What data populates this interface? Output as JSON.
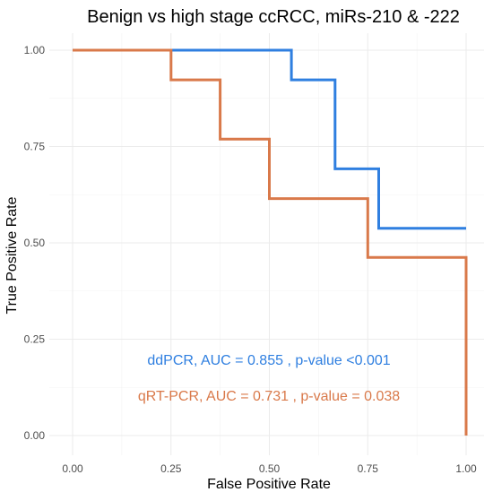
{
  "chart_data": {
    "type": "line",
    "title": "Benign vs high stage ccRCC, miRs-210 & -222",
    "xlabel": "False Positive Rate",
    "ylabel": "True Positive Rate",
    "xlim": [
      0,
      1
    ],
    "ylim": [
      0,
      1
    ],
    "x_ticks": [
      "0.00",
      "0.25",
      "0.50",
      "0.75",
      "1.00"
    ],
    "y_ticks": [
      "0.00",
      "0.25",
      "0.50",
      "0.75",
      "1.00"
    ],
    "grid": true,
    "series": [
      {
        "color": "#2f7fe0",
        "step": true,
        "x": [
          0.0,
          0.25,
          0.556,
          0.556,
          0.667,
          0.667,
          0.778,
          0.778,
          1.0
        ],
        "y": [
          1.0,
          1.0,
          1.0,
          0.923,
          0.923,
          0.692,
          0.692,
          0.538,
          0.538
        ]
      },
      {
        "color": "#d9794a",
        "step": true,
        "x": [
          0.0,
          0.25,
          0.25,
          0.375,
          0.375,
          0.5,
          0.5,
          0.75,
          0.75,
          1.0,
          1.0
        ],
        "y": [
          1.0,
          1.0,
          0.923,
          0.923,
          0.769,
          0.769,
          0.615,
          0.615,
          0.462,
          0.462,
          0.0
        ]
      }
    ],
    "annotations": [
      {
        "text": "ddPCR, AUC = 0.855 , p-value <0.001",
        "color": "#2f7fe0"
      },
      {
        "text": "qRT-PCR, AUC = 0.731 , p-value = 0.038",
        "color": "#d9794a"
      }
    ]
  }
}
